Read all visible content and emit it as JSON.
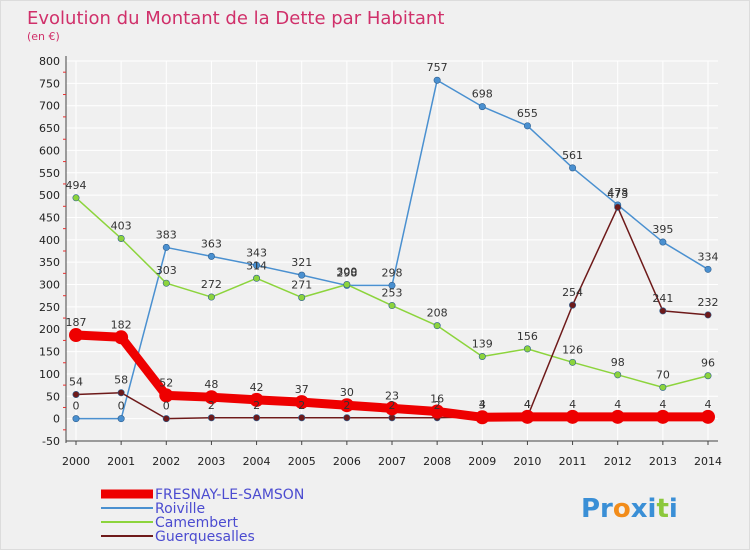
{
  "colors": {
    "title": "#d0306a",
    "grid": "#ffffff",
    "axis": "#444444",
    "tick_mark": "#e53030"
  },
  "brand": {
    "text": "Proxiti",
    "letters": [
      "Pr",
      "o",
      "x",
      "i",
      "t",
      "i"
    ],
    "colors": [
      "#3a8fd6",
      "#f28c1a",
      "#3a8fd6",
      "#3a8fd6",
      "#8cc83c",
      "#3a8fd6"
    ]
  },
  "chart_data": {
    "type": "line",
    "title": "Evolution du Montant de la Dette par Habitant",
    "subtitle": "(en €)",
    "xlabel": "",
    "ylabel": "",
    "x": [
      "2000",
      "2001",
      "2002",
      "2003",
      "2004",
      "2005",
      "2006",
      "2007",
      "2008",
      "2009",
      "2010",
      "2011",
      "2012",
      "2013",
      "2014"
    ],
    "ylim": [
      -50,
      800
    ],
    "yticks": [
      -50,
      0,
      50,
      100,
      150,
      200,
      250,
      300,
      350,
      400,
      450,
      500,
      550,
      600,
      650,
      700,
      750,
      800
    ],
    "grid": true,
    "legend_position": "bottom-left",
    "series": [
      {
        "name": "FRESNAY-LE-SAMSON",
        "color": "#ee0000",
        "values": [
          187,
          182,
          52,
          48,
          42,
          37,
          30,
          23,
          16,
          3,
          4,
          4,
          4,
          4,
          4
        ],
        "labels": [
          "187",
          "182",
          "52",
          "48",
          "42",
          "37",
          "30",
          "23",
          "16",
          "3",
          "4",
          "4",
          "4",
          "4",
          "4"
        ]
      },
      {
        "name": "Roiville",
        "color": "#4a90d0",
        "values": [
          0,
          0,
          383,
          363,
          343,
          321,
          298,
          298,
          757,
          698,
          655,
          561,
          478,
          395,
          334
        ],
        "labels": [
          "0",
          "0",
          "383",
          "363",
          "343",
          "321",
          "298",
          "298",
          "757",
          "698",
          "655",
          "561",
          "478",
          "395",
          "334"
        ]
      },
      {
        "name": "Camembert",
        "color": "#8cd43c",
        "values": [
          494,
          403,
          303,
          272,
          314,
          271,
          300,
          253,
          208,
          139,
          156,
          126,
          98,
          70,
          96
        ],
        "labels": [
          "494",
          "403",
          "303",
          "272",
          "314",
          "271",
          "300",
          "253",
          "208",
          "139",
          "156",
          "126",
          "98",
          "70",
          "96"
        ]
      },
      {
        "name": "Guerquesalles",
        "color": "#6e1a1a",
        "values": [
          54,
          58,
          0,
          2,
          2,
          2,
          2,
          2,
          2,
          4,
          4,
          254,
          473,
          241,
          232
        ],
        "labels": [
          "54",
          "58",
          "0",
          "2",
          "2",
          "2",
          "2",
          "2",
          "2",
          "4",
          "4",
          "254",
          "473",
          "241",
          "232"
        ]
      }
    ]
  }
}
